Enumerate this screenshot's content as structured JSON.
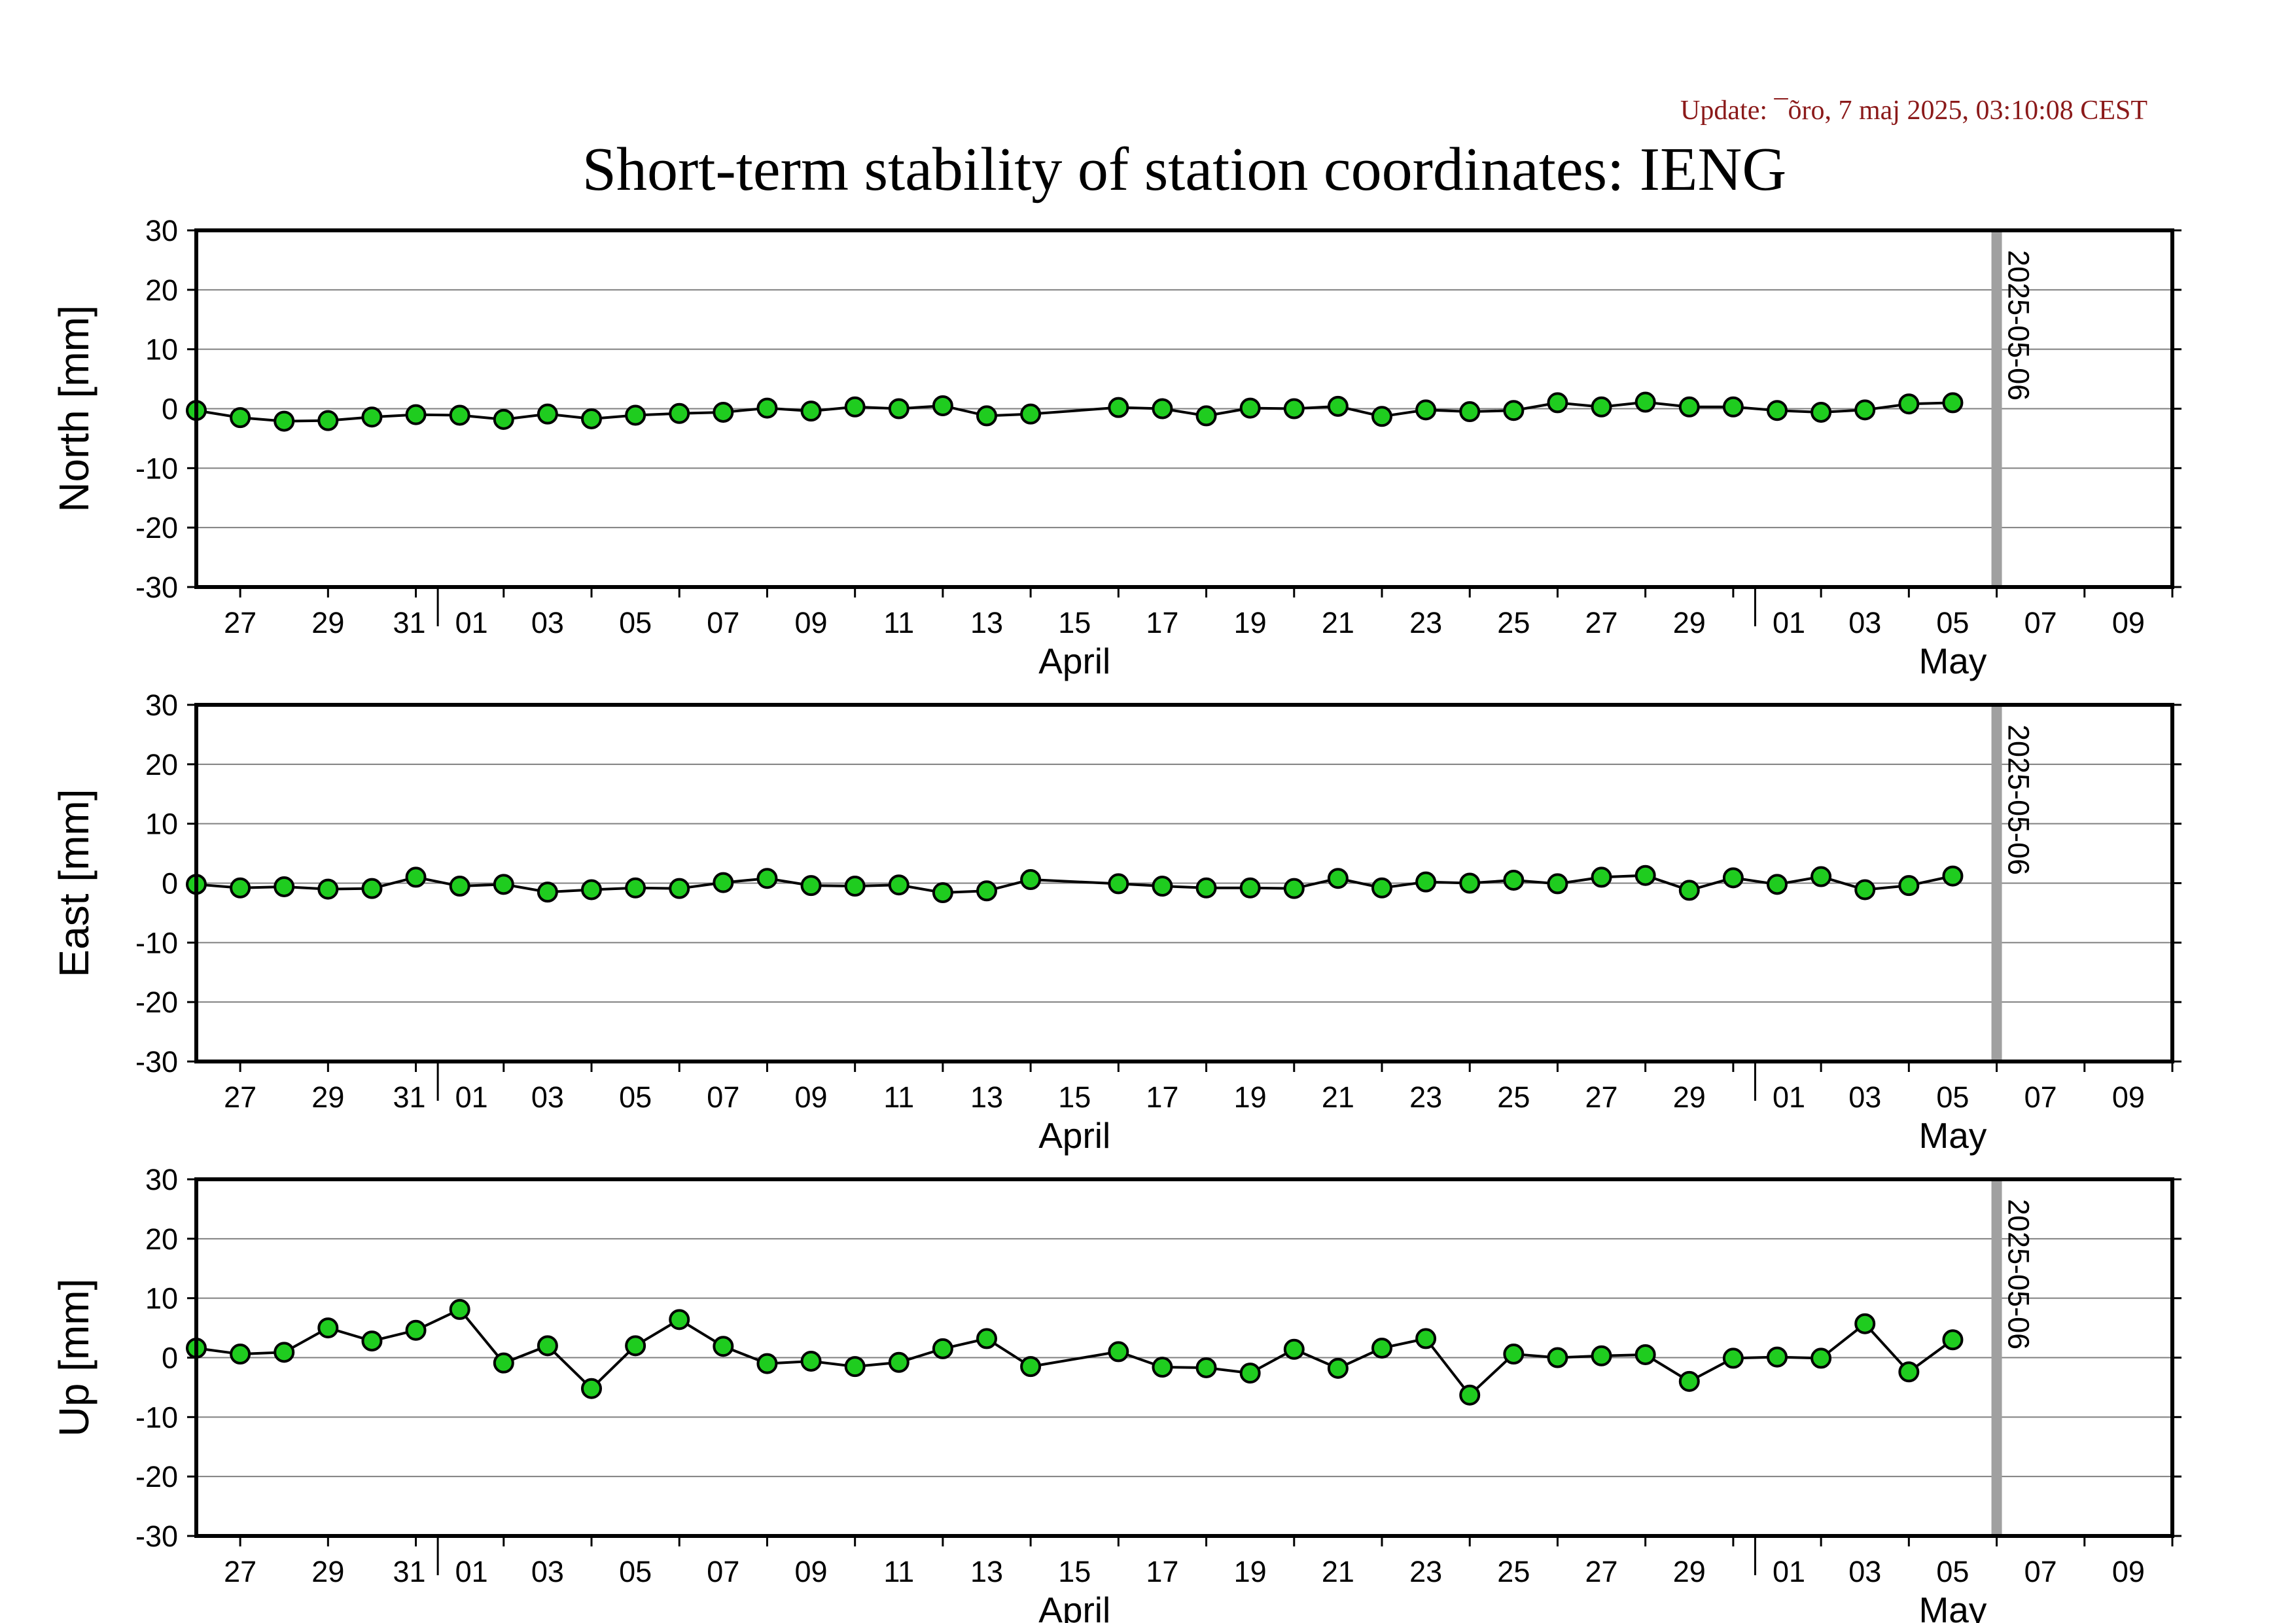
{
  "update_text": "Update: ¯õro, 7 maj 2025, 03:10:08 CEST",
  "title": "Short-term stability of station coordinates: IENG",
  "marker_date_label": "2025-05-06",
  "colors": {
    "marker_fill": "#1fcc1f",
    "marker_stroke": "#000000",
    "line": "#000000",
    "grid": "#808080",
    "vline": "#a0a0a0",
    "update_text": "#8b1a1a"
  },
  "x_axis": {
    "tick_labels": [
      "27",
      "29",
      "31",
      "01",
      "03",
      "05",
      "07",
      "09",
      "11",
      "13",
      "15",
      "17",
      "19",
      "21",
      "23",
      "25",
      "27",
      "29",
      "01",
      "03",
      "05",
      "07",
      "09"
    ],
    "month_labels": [
      "April",
      "May"
    ]
  },
  "chart_data": [
    {
      "type": "line",
      "ylabel": "North [mm]",
      "ylim": [
        -30,
        30
      ],
      "yticks": [
        -30,
        -20,
        -10,
        0,
        10,
        20,
        30
      ],
      "grid": true,
      "xlim": [
        "2025-03-26",
        "2025-05-10"
      ],
      "vline_date": "2025-05-06",
      "x": [
        "2025-03-26",
        "2025-03-27",
        "2025-03-28",
        "2025-03-29",
        "2025-03-30",
        "2025-03-31",
        "2025-04-01",
        "2025-04-02",
        "2025-04-03",
        "2025-04-04",
        "2025-04-05",
        "2025-04-06",
        "2025-04-07",
        "2025-04-08",
        "2025-04-09",
        "2025-04-10",
        "2025-04-11",
        "2025-04-12",
        "2025-04-13",
        "2025-04-14",
        "2025-04-16",
        "2025-04-17",
        "2025-04-18",
        "2025-04-19",
        "2025-04-20",
        "2025-04-21",
        "2025-04-22",
        "2025-04-23",
        "2025-04-24",
        "2025-04-25",
        "2025-04-26",
        "2025-04-27",
        "2025-04-28",
        "2025-04-29",
        "2025-04-30",
        "2025-05-01",
        "2025-05-02",
        "2025-05-03",
        "2025-05-04",
        "2025-05-05"
      ],
      "values": [
        -0.3,
        -1.5,
        -2.1,
        -2.0,
        -1.4,
        -1.0,
        -1.1,
        -1.8,
        -0.9,
        -1.7,
        -1.1,
        -0.8,
        -0.6,
        0.1,
        -0.4,
        0.3,
        0.0,
        0.5,
        -1.2,
        -0.9,
        0.2,
        0.0,
        -1.2,
        0.1,
        0.0,
        0.4,
        -1.3,
        -0.2,
        -0.5,
        -0.3,
        1.0,
        0.3,
        1.1,
        0.3,
        0.3,
        -0.3,
        -0.6,
        -0.2,
        0.8,
        1.0
      ]
    },
    {
      "type": "line",
      "ylabel": "East [mm]",
      "ylim": [
        -30,
        30
      ],
      "yticks": [
        -30,
        -20,
        -10,
        0,
        10,
        20,
        30
      ],
      "grid": true,
      "xlim": [
        "2025-03-26",
        "2025-05-10"
      ],
      "vline_date": "2025-05-06",
      "x": [
        "2025-03-26",
        "2025-03-27",
        "2025-03-28",
        "2025-03-29",
        "2025-03-30",
        "2025-03-31",
        "2025-04-01",
        "2025-04-02",
        "2025-04-03",
        "2025-04-04",
        "2025-04-05",
        "2025-04-06",
        "2025-04-07",
        "2025-04-08",
        "2025-04-09",
        "2025-04-10",
        "2025-04-11",
        "2025-04-12",
        "2025-04-13",
        "2025-04-14",
        "2025-04-16",
        "2025-04-17",
        "2025-04-18",
        "2025-04-19",
        "2025-04-20",
        "2025-04-21",
        "2025-04-22",
        "2025-04-23",
        "2025-04-24",
        "2025-04-25",
        "2025-04-26",
        "2025-04-27",
        "2025-04-28",
        "2025-04-29",
        "2025-04-30",
        "2025-05-01",
        "2025-05-02",
        "2025-05-03",
        "2025-05-04",
        "2025-05-05"
      ],
      "values": [
        -0.2,
        -0.8,
        -0.6,
        -1.0,
        -0.9,
        1.0,
        -0.5,
        -0.2,
        -1.5,
        -1.1,
        -0.8,
        -0.9,
        0.1,
        0.8,
        -0.4,
        -0.5,
        -0.3,
        -1.6,
        -1.3,
        0.6,
        -0.1,
        -0.5,
        -0.8,
        -0.8,
        -0.9,
        0.8,
        -0.8,
        0.2,
        0.0,
        0.5,
        -0.1,
        1.0,
        1.3,
        -1.2,
        0.9,
        -0.2,
        1.1,
        -1.1,
        -0.4,
        1.2
      ]
    },
    {
      "type": "line",
      "ylabel": "Up [mm]",
      "ylim": [
        -30,
        30
      ],
      "yticks": [
        -30,
        -20,
        -10,
        0,
        10,
        20,
        30
      ],
      "grid": true,
      "xlim": [
        "2025-03-26",
        "2025-05-10"
      ],
      "vline_date": "2025-05-06",
      "x": [
        "2025-03-26",
        "2025-03-27",
        "2025-03-28",
        "2025-03-29",
        "2025-03-30",
        "2025-03-31",
        "2025-04-01",
        "2025-04-02",
        "2025-04-03",
        "2025-04-04",
        "2025-04-05",
        "2025-04-06",
        "2025-04-07",
        "2025-04-08",
        "2025-04-09",
        "2025-04-10",
        "2025-04-11",
        "2025-04-12",
        "2025-04-13",
        "2025-04-14",
        "2025-04-16",
        "2025-04-17",
        "2025-04-18",
        "2025-04-19",
        "2025-04-20",
        "2025-04-21",
        "2025-04-22",
        "2025-04-23",
        "2025-04-24",
        "2025-04-25",
        "2025-04-26",
        "2025-04-27",
        "2025-04-28",
        "2025-04-29",
        "2025-04-30",
        "2025-05-01",
        "2025-05-02",
        "2025-05-03",
        "2025-05-04",
        "2025-05-05"
      ],
      "values": [
        1.6,
        0.6,
        0.9,
        5.0,
        2.8,
        4.6,
        8.1,
        -0.9,
        2.0,
        -5.2,
        2.0,
        6.4,
        1.9,
        -1.0,
        -0.6,
        -1.5,
        -0.8,
        1.5,
        3.2,
        -1.5,
        1.0,
        -1.6,
        -1.7,
        -2.6,
        1.4,
        -1.8,
        1.6,
        3.2,
        -6.3,
        0.6,
        0.0,
        0.3,
        0.5,
        -4.0,
        -0.1,
        0.1,
        -0.1,
        5.7,
        -2.4,
        3.0
      ]
    }
  ]
}
